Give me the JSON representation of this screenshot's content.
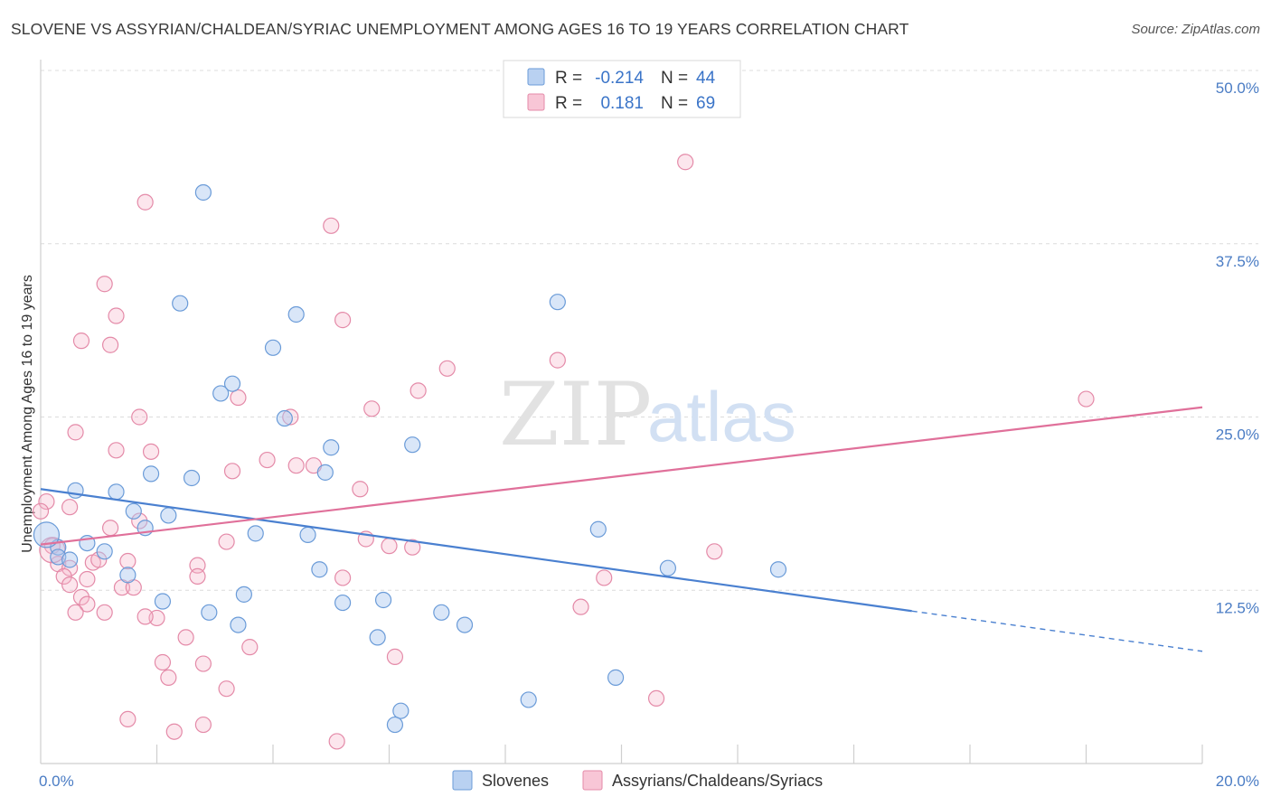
{
  "title": "SLOVENE VS ASSYRIAN/CHALDEAN/SYRIAC UNEMPLOYMENT AMONG AGES 16 TO 19 YEARS CORRELATION CHART",
  "source": "Source: ZipAtlas.com",
  "watermark": {
    "part1": "ZIP",
    "part2": "atlas"
  },
  "legend_top": {
    "r_label": "R =",
    "n_label": "N =",
    "rows": [
      {
        "series": "Slovenes",
        "r": "-0.214",
        "n": "44",
        "color": "#6a9bd8"
      },
      {
        "series": "Assyrians/Chaldeans/Syriacs",
        "r": "0.181",
        "n": "69",
        "color": "#e48aa8"
      }
    ]
  },
  "chart_data": {
    "type": "scatter",
    "title": "SLOVENE VS ASSYRIAN/CHALDEAN/SYRIAC UNEMPLOYMENT AMONG AGES 16 TO 19 YEARS CORRELATION CHART",
    "xlabel": "",
    "ylabel": "Unemployment Among Ages 16 to 19 years",
    "xlim": [
      0,
      20
    ],
    "ylim": [
      0,
      50
    ],
    "x_tick_labels": [
      "0.0%",
      "20.0%"
    ],
    "y_ticks": [
      12.5,
      25.0,
      37.5,
      50.0
    ],
    "y_tick_labels": [
      "12.5%",
      "25.0%",
      "37.5%",
      "50.0%"
    ],
    "series": [
      {
        "name": "Slovenes",
        "color": "#4a80d0",
        "trend": {
          "x0": 0,
          "y0": 19.8,
          "x1": 15.0,
          "y1": 11.0,
          "dash_x1": 20.0,
          "dash_y1": 8.1
        },
        "points": [
          [
            2.8,
            41.2
          ],
          [
            8.9,
            33.3
          ],
          [
            2.4,
            33.2
          ],
          [
            4.4,
            32.4
          ],
          [
            4.0,
            30.0
          ],
          [
            3.3,
            27.4
          ],
          [
            3.1,
            26.7
          ],
          [
            4.2,
            24.9
          ],
          [
            6.4,
            23.0
          ],
          [
            5.0,
            22.8
          ],
          [
            1.9,
            20.9
          ],
          [
            4.9,
            21.0
          ],
          [
            2.6,
            20.6
          ],
          [
            0.6,
            19.7
          ],
          [
            1.3,
            19.6
          ],
          [
            1.6,
            18.2
          ],
          [
            2.2,
            17.9
          ],
          [
            1.8,
            17.0
          ],
          [
            9.6,
            16.9
          ],
          [
            3.7,
            16.6
          ],
          [
            4.6,
            16.5
          ],
          [
            0.8,
            15.9
          ],
          [
            0.3,
            15.6
          ],
          [
            1.1,
            15.3
          ],
          [
            0.3,
            14.9
          ],
          [
            0.5,
            14.7
          ],
          [
            4.8,
            14.0
          ],
          [
            10.8,
            14.1
          ],
          [
            12.7,
            14.0
          ],
          [
            1.5,
            13.6
          ],
          [
            3.5,
            12.2
          ],
          [
            5.2,
            11.6
          ],
          [
            5.9,
            11.8
          ],
          [
            2.1,
            11.7
          ],
          [
            2.9,
            10.9
          ],
          [
            6.9,
            10.9
          ],
          [
            3.4,
            10.0
          ],
          [
            7.3,
            10.0
          ],
          [
            5.8,
            9.1
          ],
          [
            9.9,
            6.2
          ],
          [
            8.4,
            4.6
          ],
          [
            6.2,
            3.8
          ],
          [
            6.1,
            2.8
          ],
          [
            0.1,
            16.5
          ]
        ]
      },
      {
        "name": "Assyrians/Chaldeans/Syriacs",
        "color": "#e0709a",
        "trend": {
          "x0": 0,
          "y0": 15.8,
          "x1": 20.0,
          "y1": 25.7
        },
        "points": [
          [
            11.1,
            43.4
          ],
          [
            1.8,
            40.5
          ],
          [
            5.0,
            38.8
          ],
          [
            1.1,
            34.6
          ],
          [
            1.3,
            32.3
          ],
          [
            5.2,
            32.0
          ],
          [
            0.7,
            30.5
          ],
          [
            1.2,
            30.2
          ],
          [
            8.9,
            29.1
          ],
          [
            7.0,
            28.5
          ],
          [
            6.5,
            26.9
          ],
          [
            3.4,
            26.4
          ],
          [
            18.0,
            26.3
          ],
          [
            5.7,
            25.6
          ],
          [
            1.7,
            25.0
          ],
          [
            4.3,
            25.0
          ],
          [
            0.6,
            23.9
          ],
          [
            1.3,
            22.6
          ],
          [
            1.9,
            22.5
          ],
          [
            3.9,
            21.9
          ],
          [
            4.4,
            21.5
          ],
          [
            4.7,
            21.5
          ],
          [
            3.3,
            21.1
          ],
          [
            5.5,
            19.8
          ],
          [
            0.1,
            18.9
          ],
          [
            0.0,
            18.2
          ],
          [
            0.5,
            18.5
          ],
          [
            1.7,
            17.5
          ],
          [
            1.2,
            17.0
          ],
          [
            5.6,
            16.2
          ],
          [
            3.2,
            16.0
          ],
          [
            6.0,
            15.7
          ],
          [
            6.4,
            15.6
          ],
          [
            11.6,
            15.3
          ],
          [
            0.2,
            15.7
          ],
          [
            0.3,
            14.4
          ],
          [
            1.5,
            14.6
          ],
          [
            0.9,
            14.5
          ],
          [
            1.0,
            14.7
          ],
          [
            0.5,
            14.1
          ],
          [
            2.7,
            14.3
          ],
          [
            0.4,
            13.5
          ],
          [
            2.7,
            13.5
          ],
          [
            5.2,
            13.4
          ],
          [
            9.7,
            13.4
          ],
          [
            0.8,
            13.3
          ],
          [
            0.5,
            12.9
          ],
          [
            1.4,
            12.7
          ],
          [
            1.6,
            12.7
          ],
          [
            0.7,
            12.0
          ],
          [
            0.8,
            11.5
          ],
          [
            9.3,
            11.3
          ],
          [
            0.6,
            10.9
          ],
          [
            1.1,
            10.9
          ],
          [
            2.0,
            10.5
          ],
          [
            1.8,
            10.6
          ],
          [
            2.5,
            9.1
          ],
          [
            3.6,
            8.4
          ],
          [
            6.1,
            7.7
          ],
          [
            2.1,
            7.3
          ],
          [
            2.8,
            7.2
          ],
          [
            2.2,
            6.2
          ],
          [
            3.2,
            5.4
          ],
          [
            10.6,
            4.7
          ],
          [
            1.5,
            3.2
          ],
          [
            2.8,
            2.8
          ],
          [
            2.3,
            2.3
          ],
          [
            5.1,
            1.6
          ],
          [
            0.2,
            15.4
          ]
        ]
      }
    ]
  }
}
